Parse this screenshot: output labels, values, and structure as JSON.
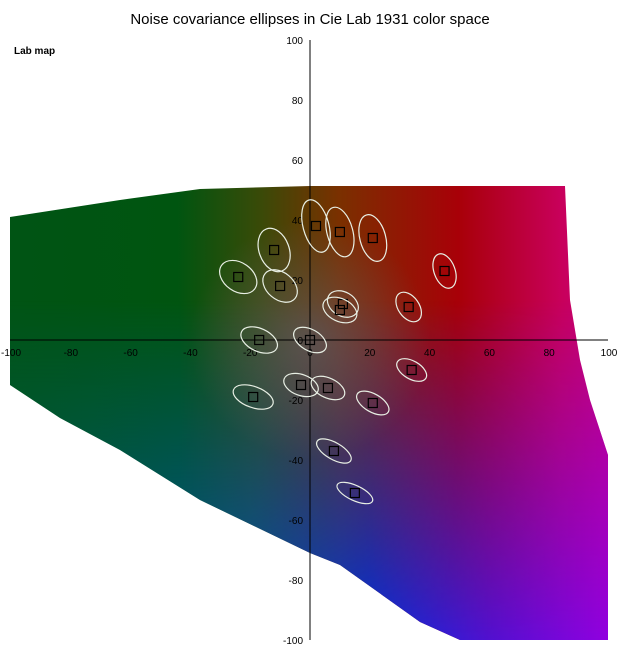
{
  "chart_data": {
    "type": "scatter",
    "title": "Noise covariance ellipses in Cie Lab 1931 color space",
    "map_label": "Lab map",
    "xlabel": "",
    "ylabel": "",
    "xlim": [
      -100,
      100
    ],
    "ylim": [
      -100,
      100
    ],
    "x_ticks": [
      "-100",
      "-80",
      "-60",
      "-40",
      "-20",
      "0",
      "20",
      "40",
      "60",
      "80",
      "100"
    ],
    "y_ticks": [
      "100",
      "80",
      "60",
      "40",
      "20",
      "0",
      "-20",
      "-40",
      "-60",
      "-80",
      "-100"
    ],
    "grid": false,
    "legend": "none",
    "background": "a*b* color gamut map",
    "ellipse_color": "#e8efe4",
    "marker_color": "#000000",
    "points": [
      {
        "a": 2,
        "b": 38,
        "semi_major": 9,
        "semi_minor": 4.3,
        "angle_deg": 105
      },
      {
        "a": 10,
        "b": 36,
        "semi_major": 8.5,
        "semi_minor": 4.3,
        "angle_deg": 105
      },
      {
        "a": 21,
        "b": 34,
        "semi_major": 8,
        "semi_minor": 4.3,
        "angle_deg": 105
      },
      {
        "a": -12,
        "b": 30,
        "semi_major": 7.5,
        "semi_minor": 5,
        "angle_deg": 110
      },
      {
        "a": -24,
        "b": 21,
        "semi_major": 6.8,
        "semi_minor": 4.8,
        "angle_deg": 145
      },
      {
        "a": -10,
        "b": 18,
        "semi_major": 6.5,
        "semi_minor": 4.5,
        "angle_deg": 140
      },
      {
        "a": 45,
        "b": 23,
        "semi_major": 6,
        "semi_minor": 3.5,
        "angle_deg": 110
      },
      {
        "a": 11,
        "b": 12,
        "semi_major": 5.5,
        "semi_minor": 4,
        "angle_deg": 150
      },
      {
        "a": 10,
        "b": 10,
        "semi_major": 6,
        "semi_minor": 3.8,
        "angle_deg": 155
      },
      {
        "a": 33,
        "b": 11,
        "semi_major": 5.5,
        "semi_minor": 3.5,
        "angle_deg": 125
      },
      {
        "a": -17,
        "b": 0,
        "semi_major": 6.5,
        "semi_minor": 3.8,
        "angle_deg": 155
      },
      {
        "a": 0,
        "b": 0,
        "semi_major": 6,
        "semi_minor": 3.5,
        "angle_deg": 150
      },
      {
        "a": 34,
        "b": -10,
        "semi_major": 5.5,
        "semi_minor": 3,
        "angle_deg": 150
      },
      {
        "a": -3,
        "b": -15,
        "semi_major": 6,
        "semi_minor": 3.5,
        "angle_deg": 160
      },
      {
        "a": 6,
        "b": -16,
        "semi_major": 6,
        "semi_minor": 3.3,
        "angle_deg": 155
      },
      {
        "a": -19,
        "b": -19,
        "semi_major": 7,
        "semi_minor": 3.5,
        "angle_deg": 160
      },
      {
        "a": 21,
        "b": -21,
        "semi_major": 6,
        "semi_minor": 3,
        "angle_deg": 150
      },
      {
        "a": 8,
        "b": -37,
        "semi_major": 6.5,
        "semi_minor": 2.8,
        "angle_deg": 150
      },
      {
        "a": 15,
        "b": -51,
        "semi_major": 6.5,
        "semi_minor": 2.5,
        "angle_deg": 155
      }
    ]
  }
}
